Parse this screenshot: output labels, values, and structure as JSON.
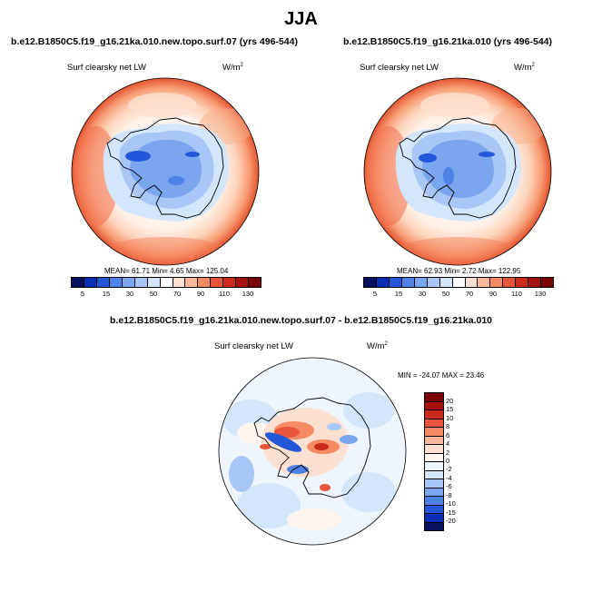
{
  "page": {
    "title": "JJA"
  },
  "panels": {
    "left": {
      "case": "b.e12.B1850C5.f19_g16.21ka.010.new.topo.surf.07 (yrs 496-544)",
      "variable": "Surf clearsky net LW",
      "units": "W/m",
      "units_exp": "2",
      "stats": "MEAN= 61.71  Min=   4.65  Max= 125.04"
    },
    "right": {
      "case": "b.e12.B1850C5.f19_g16.21ka.010 (yrs 496-544)",
      "variable": "Surf clearsky net LW",
      "units": "W/m",
      "units_exp": "2",
      "stats": "MEAN= 62.93  Min=   2.72  Max= 122.95"
    },
    "diff": {
      "case": "b.e12.B1850C5.f19_g16.21ka.010.new.topo.surf.07 - b.e12.B1850C5.f19_g16.21ka.010",
      "variable": "Surf clearsky net LW",
      "units": "W/m",
      "units_exp": "2",
      "stats": "MIN = -24.07 MAX =  23.46"
    }
  },
  "abs_colorbar": {
    "labels": [
      "5",
      "15",
      "30",
      "50",
      "70",
      "90",
      "110",
      "130"
    ],
    "colors": [
      "#08115e",
      "#0a2fb5",
      "#2357d9",
      "#4d82e6",
      "#7aa5ef",
      "#a9c7f6",
      "#d4e6fc",
      "#ffffff",
      "#fde0cf",
      "#fbb898",
      "#f68a62",
      "#e8553a",
      "#cc2a1b",
      "#a5120c",
      "#7a0707"
    ]
  },
  "diff_colorbar": {
    "labels": [
      "20",
      "15",
      "10",
      "8",
      "6",
      "4",
      "2",
      "0",
      "-2",
      "-4",
      "-6",
      "-8",
      "-10",
      "-15",
      "-20"
    ],
    "colors": [
      "#7a0707",
      "#a5120c",
      "#cc2a1b",
      "#e8553a",
      "#f68a62",
      "#fbb898",
      "#fde0cf",
      "#fff5ee",
      "#eef5fd",
      "#d4e6fc",
      "#a9c7f6",
      "#7aa5ef",
      "#4d82e6",
      "#2357d9",
      "#0a2fb5",
      "#08115e"
    ]
  }
}
